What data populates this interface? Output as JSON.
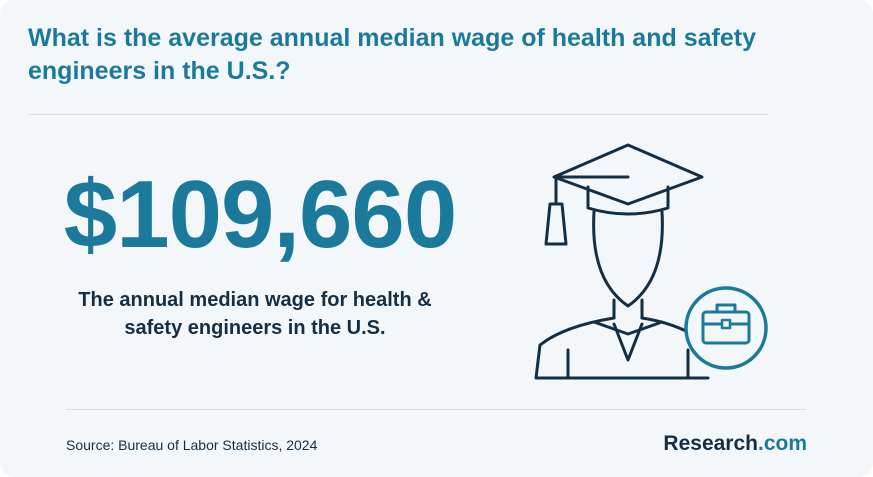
{
  "header": {
    "title": "What is the average annual median wage of health and safety engineers in the U.S.?"
  },
  "stat": {
    "value": "$109,660",
    "caption": "The annual median wage for health & safety engineers in the U.S."
  },
  "illustration": {
    "icon": "graduate-with-briefcase-icon"
  },
  "footer": {
    "source": "Source: Bureau of Labor Statistics, 2024",
    "brand_name": "Research",
    "brand_suffix": ".com"
  },
  "colors": {
    "accent": "#1b7a9c",
    "text_dark": "#142f44",
    "background": "#f4f7f9",
    "divider": "#d9dee2"
  }
}
